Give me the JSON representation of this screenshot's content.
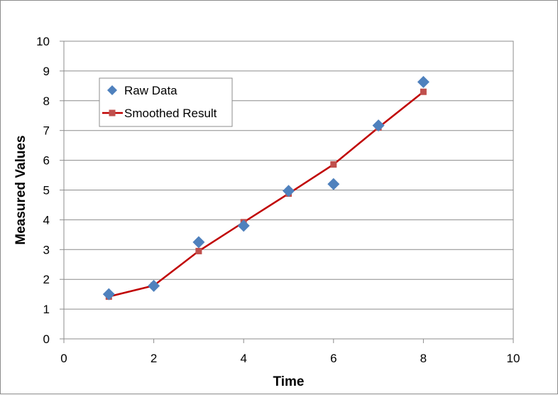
{
  "chart_data": {
    "type": "scatter",
    "title": "",
    "xlabel": "Time",
    "ylabel": "Measured Values",
    "xlim": [
      0,
      10
    ],
    "ylim": [
      0,
      10
    ],
    "x_ticks": [
      0,
      2,
      4,
      6,
      8,
      10
    ],
    "y_ticks": [
      0,
      1,
      2,
      3,
      4,
      5,
      6,
      7,
      8,
      9,
      10
    ],
    "grid": "horizontal",
    "legend_position": "top-left",
    "series": [
      {
        "name": "Raw Data",
        "kind": "markers",
        "marker": "diamond",
        "color": "#4F81BD",
        "x": [
          1,
          2,
          3,
          4,
          5,
          6,
          7,
          8
        ],
        "y": [
          1.5,
          1.78,
          3.25,
          3.8,
          4.97,
          5.2,
          7.17,
          8.63
        ]
      },
      {
        "name": "Smoothed Result",
        "kind": "line-markers",
        "marker": "square",
        "color": "#C0504D",
        "line_color": "#C00000",
        "x": [
          1,
          2,
          3,
          4,
          5,
          6,
          7,
          8
        ],
        "y": [
          1.42,
          1.79,
          2.95,
          3.92,
          4.88,
          5.86,
          7.1,
          8.3
        ]
      }
    ]
  }
}
